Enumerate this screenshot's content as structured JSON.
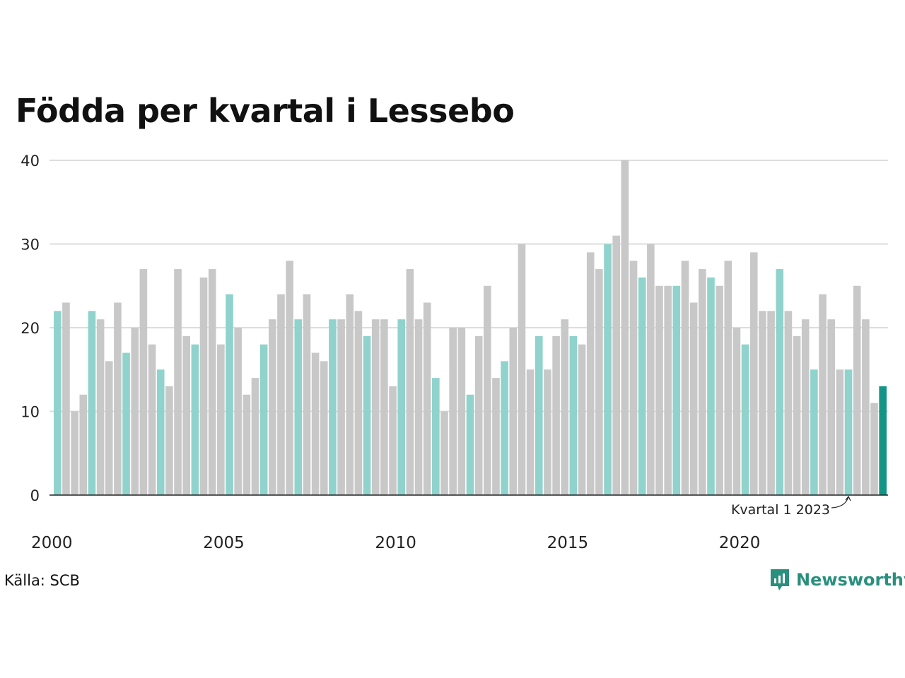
{
  "header": {
    "title": "Födda per kvartal i Lessebo"
  },
  "footer": {
    "source": "Källa: SCB",
    "brand": "Newsworthy"
  },
  "colors": {
    "bar_default": "#c8c8c8",
    "bar_q1": "#8fd3cc",
    "bar_latest": "#149486",
    "grid": "#dddddd",
    "axis": "#222222",
    "brand": "#2a8f7d"
  },
  "chart_data": {
    "type": "bar",
    "title": "Födda per kvartal i Lessebo",
    "xlabel": "",
    "ylabel": "",
    "ylim": [
      0,
      40
    ],
    "yticks": [
      0,
      10,
      20,
      30,
      40
    ],
    "xticks": [
      "2000",
      "2005",
      "2010",
      "2015",
      "2020"
    ],
    "grid": true,
    "start_year": 2000,
    "values": [
      22,
      23,
      10,
      12,
      22,
      21,
      16,
      23,
      17,
      20,
      27,
      18,
      15,
      13,
      27,
      19,
      18,
      26,
      27,
      18,
      24,
      20,
      12,
      14,
      18,
      21,
      24,
      28,
      21,
      24,
      17,
      16,
      21,
      21,
      24,
      22,
      19,
      21,
      21,
      13,
      21,
      27,
      21,
      23,
      14,
      10,
      20,
      20,
      12,
      19,
      25,
      14,
      16,
      20,
      30,
      15,
      19,
      15,
      19,
      21,
      19,
      18,
      29,
      27,
      30,
      31,
      40,
      28,
      26,
      30,
      25,
      25,
      25,
      28,
      23,
      27,
      26,
      25,
      28,
      20,
      18,
      29,
      22,
      22,
      27,
      22,
      19,
      21,
      15,
      24,
      21,
      15,
      15,
      25,
      21,
      11,
      13
    ],
    "annotation": {
      "label": "Kvartal 1 2023",
      "target_index": 92
    }
  }
}
